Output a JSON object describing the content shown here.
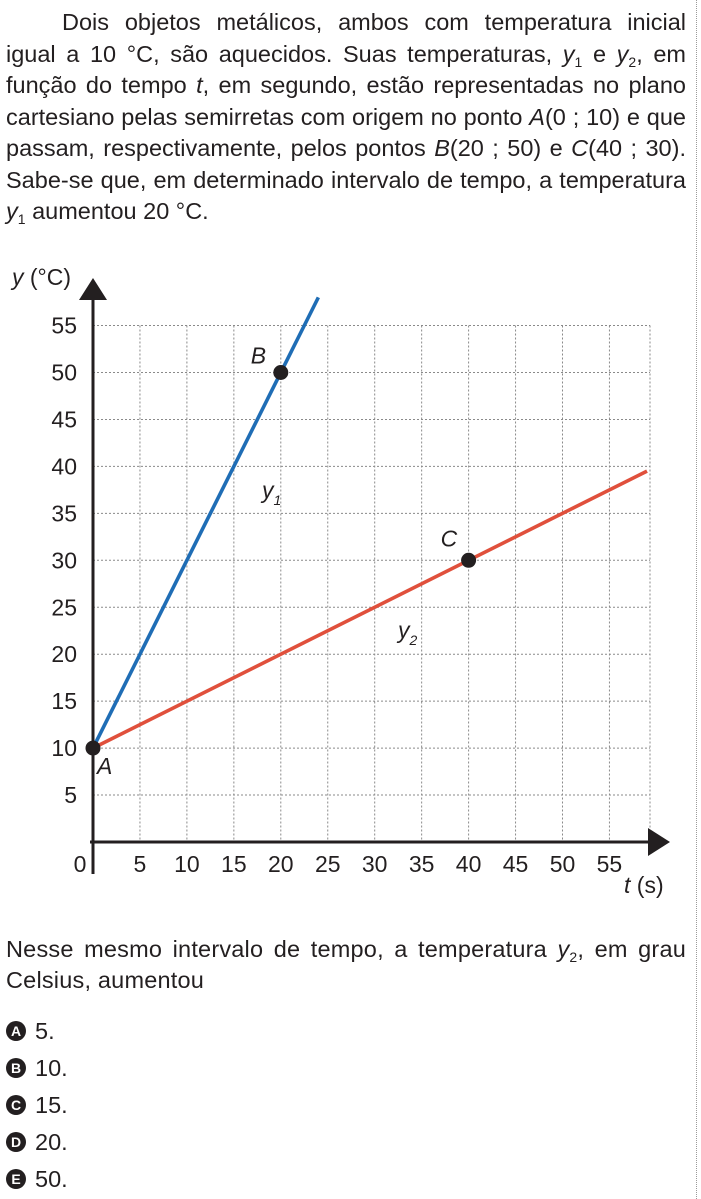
{
  "question": {
    "p1": "Dois objetos metálicos, ambos com temperatura inicial igual a 10 °C, são aquecidos. Suas temperaturas, ",
    "y": "y",
    "sub1": "1",
    "and": " e ",
    "sub2": "2",
    "p2": ", em função do tempo ",
    "t": "t",
    "p3": ", em segundo, estão representadas no plano cartesiano pelas semirretas com origem no ponto ",
    "A": "A",
    "A_coords": "(0 ; 10) e que passam, respectivamente, pelos pontos ",
    "B": "B",
    "B_coords": "(20 ; 50) e ",
    "C": "C",
    "C_coords": "(40 ; 30). Sabe-se que, em determinado intervalo de tempo, a temperatura ",
    "p4": " aumentou 20 °C."
  },
  "chart_data": {
    "type": "line",
    "xlabel_var": "t",
    "xlabel_unit": " (s)",
    "ylabel_var": "y",
    "ylabel_unit": " (°C)",
    "x_ticks": [
      "0",
      "5",
      "10",
      "15",
      "20",
      "25",
      "30",
      "35",
      "40",
      "45",
      "50",
      "55"
    ],
    "y_ticks": [
      "5",
      "10",
      "15",
      "20",
      "25",
      "30",
      "35",
      "40",
      "45",
      "50",
      "55"
    ],
    "xlim": [
      0,
      60
    ],
    "ylim": [
      0,
      57.5
    ],
    "grid": true,
    "series": [
      {
        "name": "y",
        "sub": "1",
        "color": "#1f6db5",
        "x": [
          0,
          24
        ],
        "y": [
          10,
          58
        ]
      },
      {
        "name": "y",
        "sub": "2",
        "color": "#e0503c",
        "x": [
          0,
          59
        ],
        "y": [
          10,
          39.5
        ]
      }
    ],
    "points": [
      {
        "label": "A",
        "x": 0,
        "y": 10
      },
      {
        "label": "B",
        "x": 20,
        "y": 50
      },
      {
        "label": "C",
        "x": 40,
        "y": 30
      }
    ]
  },
  "prompt": {
    "p1": "Nesse mesmo intervalo de tempo, a temperatura ",
    "y": "y",
    "sub": "2",
    "p2": ", em grau Celsius, aumentou"
  },
  "options": [
    {
      "letter": "A",
      "text": "5."
    },
    {
      "letter": "B",
      "text": "10."
    },
    {
      "letter": "C",
      "text": "15."
    },
    {
      "letter": "D",
      "text": "20."
    },
    {
      "letter": "E",
      "text": "50."
    }
  ]
}
